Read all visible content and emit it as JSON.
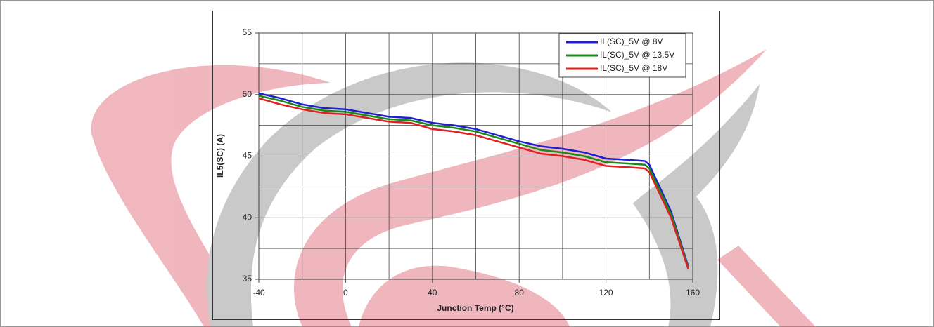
{
  "chart_data": {
    "type": "line",
    "xlabel": "Junction Temp (°C)",
    "ylabel": "IL5(SC)  (A)",
    "x": [
      -40,
      -30,
      -20,
      -10,
      0,
      10,
      20,
      30,
      40,
      50,
      60,
      70,
      80,
      90,
      100,
      110,
      120,
      130,
      138,
      140,
      150,
      158
    ],
    "series": [
      {
        "name": "IL(SC)_5V @ 8V",
        "color": "#1f1fd0",
        "values": [
          50.1,
          49.7,
          49.2,
          48.9,
          48.8,
          48.5,
          48.2,
          48.1,
          47.7,
          47.5,
          47.2,
          46.7,
          46.2,
          45.8,
          45.6,
          45.3,
          44.8,
          44.7,
          44.6,
          44.3,
          40.5,
          36.0
        ]
      },
      {
        "name": "IL(SC)_5V @ 13.5V",
        "color": "#1a8a1a",
        "values": [
          49.9,
          49.5,
          49.0,
          48.7,
          48.6,
          48.3,
          48.0,
          47.9,
          47.5,
          47.3,
          47.0,
          46.5,
          46.0,
          45.5,
          45.3,
          45.0,
          44.5,
          44.4,
          44.3,
          44.0,
          40.3,
          35.9
        ]
      },
      {
        "name": "IL(SC)_5V @ 18V",
        "color": "#e02020",
        "values": [
          49.7,
          49.2,
          48.8,
          48.5,
          48.4,
          48.1,
          47.8,
          47.7,
          47.2,
          47.0,
          46.7,
          46.2,
          45.7,
          45.2,
          45.0,
          44.7,
          44.2,
          44.1,
          44.0,
          43.7,
          40.0,
          35.8
        ]
      }
    ],
    "xlim": [
      -40,
      160
    ],
    "xticks": [
      -40,
      0,
      40,
      80,
      120,
      160
    ],
    "minor_xticks": [
      -20,
      20,
      60,
      100,
      140
    ],
    "ylim": [
      35,
      55
    ],
    "yticks": [
      35,
      40,
      45,
      50,
      55
    ],
    "minor_yticks": [
      37.5,
      42.5,
      47.5,
      52.5
    ],
    "grid": true,
    "legend": "upper right"
  }
}
